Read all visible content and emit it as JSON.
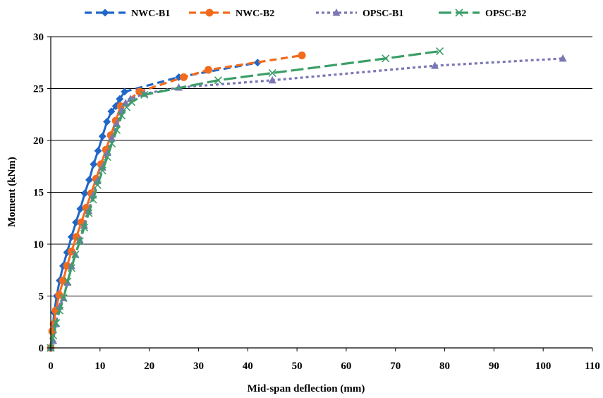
{
  "chart_data": {
    "type": "line",
    "xlabel": "Mid-span deflection (mm)",
    "ylabel": "Moment (kNm)",
    "xlim": [
      0,
      110
    ],
    "ylim": [
      0,
      30
    ],
    "xticks": [
      0,
      10,
      20,
      30,
      40,
      50,
      60,
      70,
      80,
      90,
      100,
      110
    ],
    "yticks": [
      0,
      5,
      10,
      15,
      20,
      25,
      30
    ],
    "grid": "horizontal",
    "legend_position": "top",
    "series": [
      {
        "name": "NWC-B1",
        "color": "#1f66c8",
        "marker": "diamond",
        "dash": "solid-then-dashed",
        "x": [
          0,
          0.3,
          0.7,
          1.2,
          1.8,
          2.5,
          3.3,
          4.2,
          5.1,
          6.0,
          6.9,
          7.8,
          8.7,
          9.6,
          10.5,
          11.4,
          12.3,
          13.2,
          14.0,
          15.0,
          26.0,
          42.0
        ],
        "y": [
          0,
          1.5,
          3.4,
          5.0,
          6.5,
          7.9,
          9.2,
          10.7,
          12.1,
          13.4,
          14.9,
          16.2,
          17.7,
          19.0,
          20.4,
          21.8,
          22.8,
          23.3,
          24.0,
          24.7,
          26.1,
          27.5
        ]
      },
      {
        "name": "NWC-B2",
        "color": "#f26b1d",
        "marker": "circle",
        "dash": "solid-then-dashed",
        "x": [
          0,
          0.3,
          0.6,
          1.0,
          1.7,
          2.5,
          3.3,
          4.2,
          5.2,
          6.2,
          7.2,
          8.2,
          9.2,
          10.2,
          11.2,
          12.2,
          13.2,
          14.2,
          18.0,
          27.0,
          32.0,
          51.0
        ],
        "y": [
          0,
          1.6,
          2.3,
          3.6,
          5.1,
          6.5,
          7.9,
          9.3,
          10.7,
          12.1,
          13.5,
          14.9,
          16.3,
          17.7,
          19.1,
          20.5,
          21.9,
          23.3,
          24.7,
          26.1,
          26.8,
          28.2
        ]
      },
      {
        "name": "OPSC-B1",
        "color": "#7b77b5",
        "marker": "triangle",
        "dash": "dotted",
        "x": [
          0,
          0.5,
          1.0,
          1.8,
          2.6,
          3.4,
          4.2,
          5.0,
          5.9,
          6.8,
          7.7,
          8.6,
          9.5,
          10.5,
          11.5,
          12.4,
          13.4,
          14.4,
          15.2,
          16.2,
          19.0,
          26.0,
          45.0,
          78.0,
          104.0
        ],
        "y": [
          0,
          0.7,
          2.3,
          4.0,
          4.8,
          6.3,
          7.9,
          9.0,
          10.4,
          11.8,
          13.2,
          14.7,
          16.1,
          17.4,
          18.8,
          20.2,
          21.6,
          22.9,
          23.6,
          24.0,
          24.5,
          25.1,
          25.8,
          27.2,
          27.9
        ]
      },
      {
        "name": "OPSC-B2",
        "color": "#3b9e68",
        "marker": "x",
        "dash": "long-dash",
        "x": [
          0,
          0.5,
          1.1,
          1.8,
          2.6,
          3.4,
          4.2,
          5.0,
          5.9,
          6.8,
          7.7,
          8.6,
          9.5,
          10.5,
          11.5,
          12.4,
          13.4,
          14.4,
          15.4,
          16.4,
          19.0,
          34.0,
          45.0,
          68.0,
          79.0
        ],
        "y": [
          0,
          1.2,
          2.4,
          3.6,
          4.8,
          6.4,
          7.7,
          9.0,
          10.3,
          11.6,
          13.0,
          14.3,
          15.7,
          17.1,
          18.4,
          19.7,
          21.0,
          22.4,
          23.2,
          23.7,
          24.4,
          25.8,
          26.5,
          27.9,
          28.6
        ]
      }
    ]
  }
}
